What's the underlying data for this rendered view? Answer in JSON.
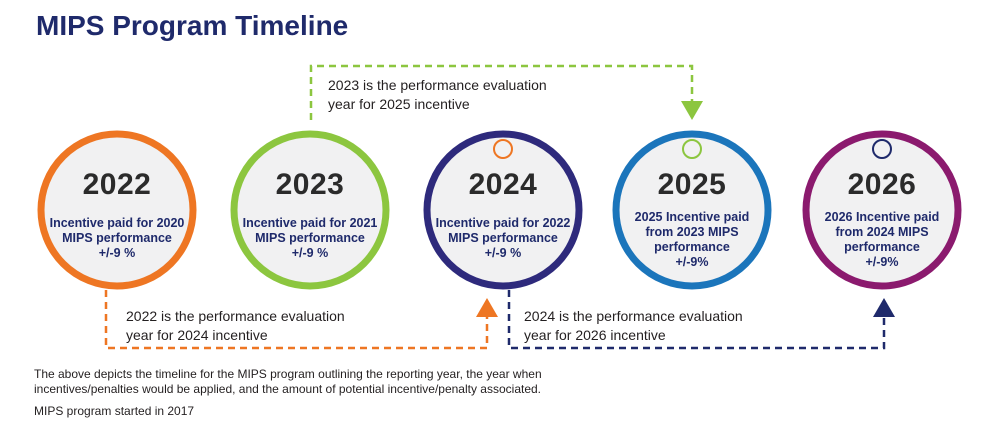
{
  "title": "MIPS Program Timeline",
  "circles": [
    {
      "year": "2022",
      "desc": [
        "Incentive paid for 2020",
        "MIPS performance",
        "+/-9 %"
      ],
      "color": "#ee7623",
      "marker": false
    },
    {
      "year": "2023",
      "desc": [
        "Incentive paid for 2021",
        "MIPS performance",
        "+/-9 %"
      ],
      "color": "#8cc63f",
      "marker": false
    },
    {
      "year": "2024",
      "desc": [
        "Incentive paid for 2022",
        "MIPS performance",
        "+/-9 %"
      ],
      "color": "#2e2a7c",
      "marker": true,
      "marker_color": "#ee7623"
    },
    {
      "year": "2025",
      "desc": [
        "2025 Incentive paid",
        "from 2023 MIPS",
        "performance",
        "+/-9%"
      ],
      "color": "#1b75bb",
      "marker": true,
      "marker_color": "#8cc63f"
    },
    {
      "year": "2026",
      "desc": [
        "2026 Incentive paid",
        "from 2024 MIPS",
        "performance",
        "+/-9%"
      ],
      "color": "#8b1a6e",
      "marker": true,
      "marker_color": "#1f2a6b"
    }
  ],
  "callouts": {
    "top": [
      "2023 is the performance evaluation",
      "year for 2025 incentive"
    ],
    "bottom_left": [
      "2022 is the performance evaluation",
      "year for 2024 incentive"
    ],
    "bottom_right": [
      "2024 is the performance evaluation",
      "year for 2026 incentive"
    ]
  },
  "arrow_colors": {
    "top": "#8cc63f",
    "bottom_left": "#ee7623",
    "bottom_right": "#1f2a6b"
  },
  "footer": {
    "description": [
      "The above depicts the timeline for the MIPS program outlining the reporting year, the year when",
      "incentives/penalties would be applied, and the amount of potential incentive/penalty associated."
    ],
    "start_note": "MIPS program started in 2017"
  }
}
